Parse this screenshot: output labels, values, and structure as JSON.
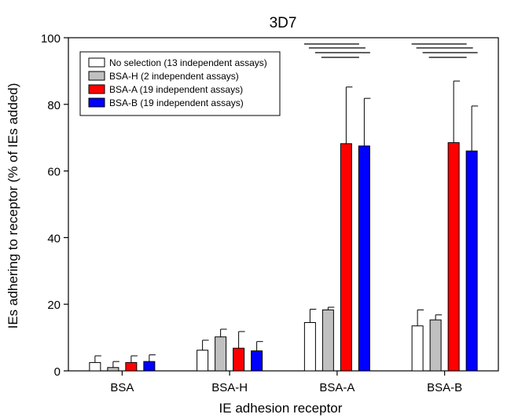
{
  "chart_data": {
    "type": "bar",
    "title": "3D7",
    "xlabel": "IE adhesion receptor",
    "ylabel": "IEs adhering to receptor (% of IEs added)",
    "ylim": [
      0,
      100
    ],
    "yticks": [
      0,
      20,
      40,
      60,
      80,
      100
    ],
    "categories": [
      "BSA",
      "BSA-H",
      "BSA-A",
      "BSA-B"
    ],
    "legend_position": "top-left",
    "series": [
      {
        "name": "No selection (13 independent assays)",
        "color": "#ffffff",
        "values": [
          2.5,
          6.2,
          14.5,
          13.5
        ],
        "errors": [
          2.0,
          3.0,
          4.0,
          4.8
        ]
      },
      {
        "name": "BSA-H (2 independent assays)",
        "color": "#c0c0c0",
        "values": [
          1.0,
          10.2,
          18.3,
          15.3
        ],
        "errors": [
          1.8,
          2.3,
          0.8,
          1.5
        ]
      },
      {
        "name": "BSA-A (19 independent assays)",
        "color": "#ff0000",
        "values": [
          2.5,
          6.8,
          68.2,
          68.5
        ],
        "errors": [
          2.0,
          5.0,
          17.0,
          18.5
        ]
      },
      {
        "name": "BSA-B (19 independent assays)",
        "color": "#0000ff",
        "values": [
          2.8,
          6.0,
          67.5,
          66.0
        ],
        "errors": [
          2.0,
          2.8,
          14.3,
          13.5
        ]
      }
    ],
    "significance_brackets": [
      {
        "category": "BSA-A",
        "lines": 4
      },
      {
        "category": "BSA-B",
        "lines": 4
      }
    ]
  }
}
